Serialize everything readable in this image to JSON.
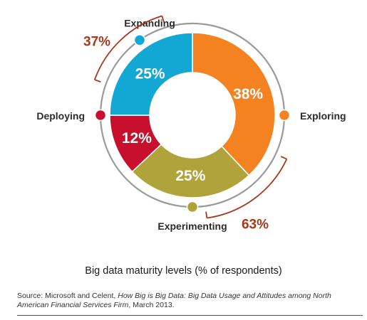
{
  "chart_data": {
    "type": "pie",
    "variant": "donut",
    "title": "Big data maturity levels (% of respondents)",
    "categories": [
      "Exploring",
      "Experimenting",
      "Deploying",
      "Expanding"
    ],
    "values": [
      38,
      25,
      12,
      25
    ],
    "value_labels": [
      "38%",
      "25%",
      "12%",
      "25%"
    ],
    "colors": [
      "#f58220",
      "#b0a33c",
      "#c8102e",
      "#13a7d3"
    ],
    "groups": [
      {
        "label": "63%",
        "members": [
          "Exploring",
          "Experimenting"
        ]
      },
      {
        "label": "37%",
        "members": [
          "Deploying",
          "Expanding"
        ]
      }
    ],
    "legend": "none",
    "grid": false
  },
  "caption": "Big data maturity levels (% of respondents)",
  "source": {
    "prefix": "Source: Microsoft and Celent, ",
    "title_italic": "How Big is Big Data: Big Data Usage and Attitudes among North American Financial Services Firm",
    "suffix": ", March 2013."
  },
  "colors": {
    "ring": "#9a9a9a",
    "group_bracket": "#a33a1c"
  }
}
